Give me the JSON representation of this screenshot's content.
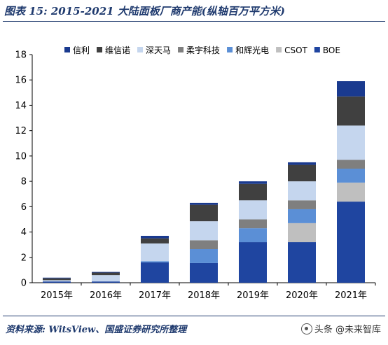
{
  "figure": {
    "title": "图表 15: 2015-2021 大陆面板厂商产能(纵轴百万平方米)",
    "source": "资料来源: WitsView、国盛证券研究所整理",
    "watermark": "头条 @未来智库"
  },
  "chart_data": {
    "type": "bar",
    "stacked": true,
    "categories": [
      "2015年",
      "2016年",
      "2017年",
      "2018年",
      "2019年",
      "2020年",
      "2021年"
    ],
    "ylim": [
      0,
      18
    ],
    "yticks": [
      0,
      2,
      4,
      6,
      8,
      10,
      12,
      14,
      16,
      18
    ],
    "xlabel": "",
    "ylabel": "",
    "grid": false,
    "legend_position": "top",
    "series": [
      {
        "name": "BOE",
        "color": "#1f45a0",
        "values": [
          0.1,
          0.1,
          1.6,
          1.55,
          3.2,
          3.2,
          6.4
        ]
      },
      {
        "name": "CSOT",
        "color": "#bfbfbf",
        "values": [
          0.0,
          0.0,
          0.0,
          0.0,
          0.0,
          1.5,
          1.5
        ]
      },
      {
        "name": "和辉光电",
        "color": "#5b8fd6",
        "values": [
          0.0,
          0.0,
          0.1,
          1.1,
          1.1,
          1.1,
          1.1
        ]
      },
      {
        "name": "柔宇科技",
        "color": "#7f7f7f",
        "values": [
          0.0,
          0.0,
          0.0,
          0.7,
          0.7,
          0.7,
          0.7
        ]
      },
      {
        "name": "深天马",
        "color": "#c5d6ee",
        "values": [
          0.1,
          0.5,
          1.4,
          1.5,
          1.5,
          1.5,
          2.7
        ]
      },
      {
        "name": "维信诺",
        "color": "#404040",
        "values": [
          0.15,
          0.2,
          0.4,
          1.3,
          1.3,
          1.3,
          2.3
        ]
      },
      {
        "name": "信利",
        "color": "#1a3a8f",
        "values": [
          0.05,
          0.05,
          0.2,
          0.15,
          0.2,
          0.2,
          1.2
        ]
      }
    ],
    "legend_order": [
      "信利",
      "维信诺",
      "深天马",
      "柔宇科技",
      "和辉光电",
      "CSOT",
      "BOE"
    ]
  }
}
